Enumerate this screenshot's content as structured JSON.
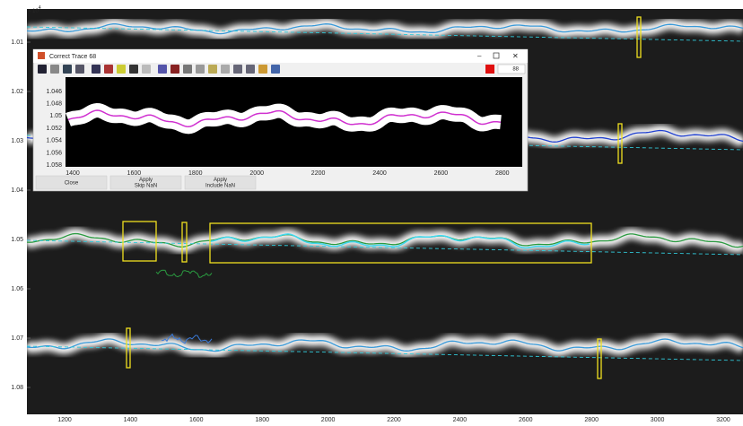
{
  "figure": {
    "exponent_base": "× 10",
    "exponent_power": "4",
    "yticks": [
      "1.01",
      "1.02",
      "1.03",
      "1.04",
      "1.05",
      "1.06",
      "1.07",
      "1.08"
    ],
    "xticks": [
      "1200",
      "1400",
      "1600",
      "1800",
      "2000",
      "2200",
      "2400",
      "2600",
      "2800",
      "3000",
      "3200"
    ]
  },
  "dialog": {
    "title": "Correct Trace 68",
    "field_value": "88",
    "yticks": [
      "1.046",
      "1.048",
      "1.05",
      "1.052",
      "1.054",
      "1.056",
      "1.058"
    ],
    "xticks": [
      "1400",
      "1600",
      "1800",
      "2000",
      "2200",
      "2400",
      "2600",
      "2800"
    ],
    "buttons": [
      {
        "line1": "Close"
      },
      {
        "line1": "Apply",
        "line2": "Skip NaN"
      },
      {
        "line1": "Apply",
        "line2": "Include NaN"
      }
    ]
  }
}
